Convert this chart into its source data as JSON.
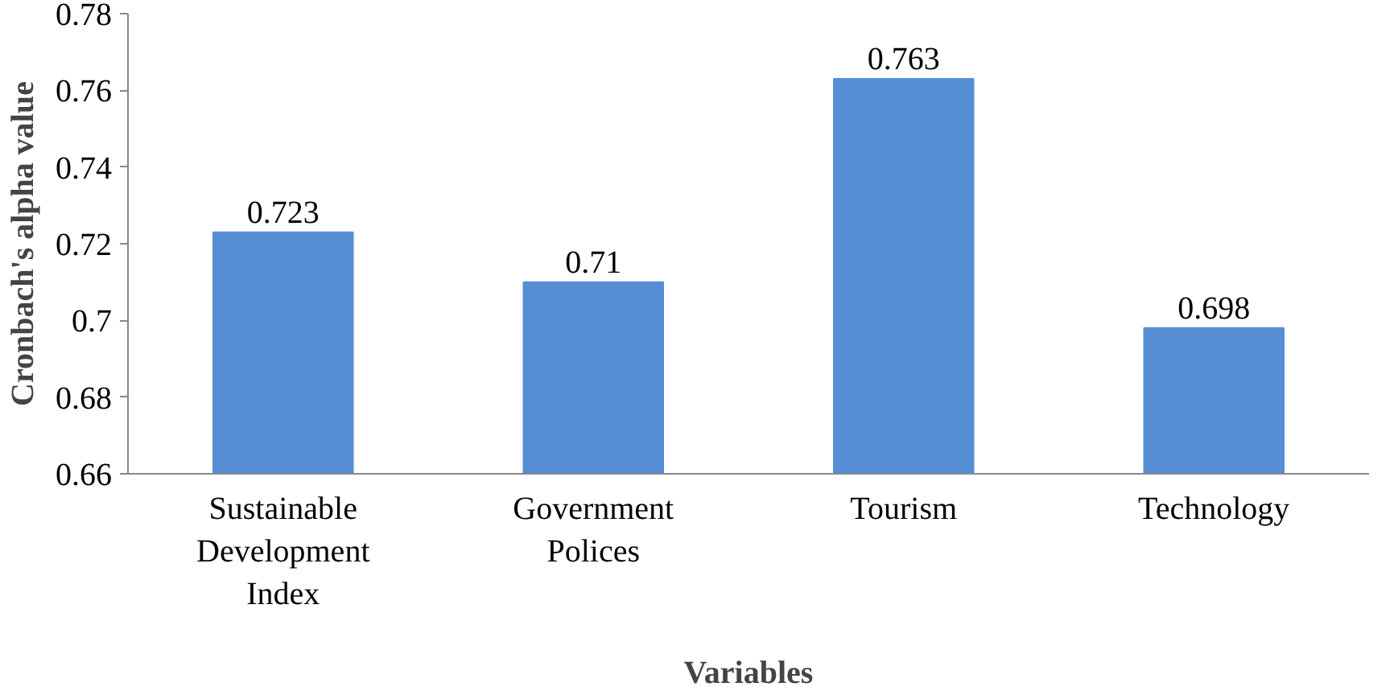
{
  "chart_data": {
    "type": "bar",
    "xlabel": "Variables",
    "ylabel": "Cronbach's alpha value",
    "categories": [
      "Sustainable Development Index",
      "Government Polices",
      "Tourism",
      "Technology"
    ],
    "values": [
      0.723,
      0.71,
      0.763,
      0.698
    ],
    "color": "#558ed5",
    "ylim": [
      0.66,
      0.78
    ],
    "yticks": [
      0.66,
      0.68,
      0.7,
      0.72,
      0.74,
      0.76,
      0.78
    ],
    "grid": false,
    "data_labels": true
  }
}
